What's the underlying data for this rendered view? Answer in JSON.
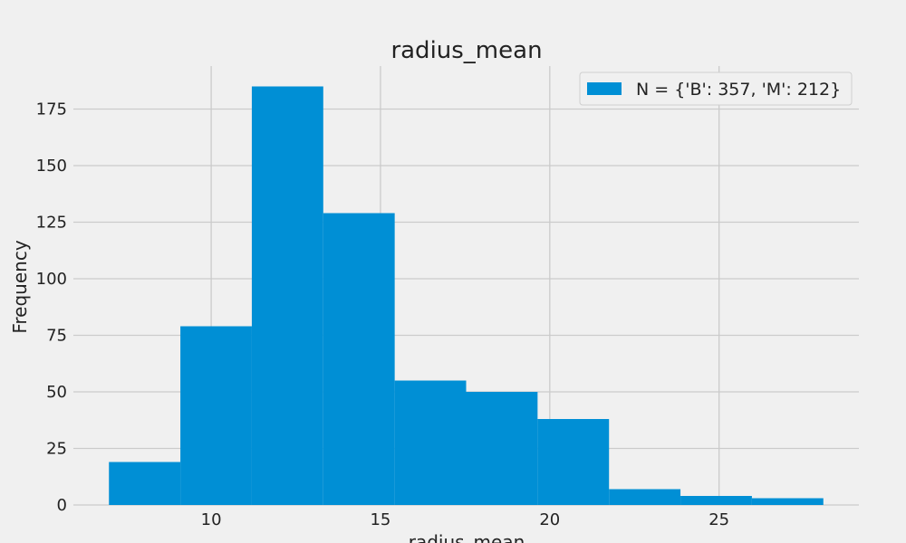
{
  "chart_data": {
    "type": "bar",
    "title": "radius_mean",
    "xlabel": "radius_mean",
    "ylabel": "Frequency",
    "bin_edges": [
      6.98,
      9.09,
      11.2,
      13.31,
      15.42,
      17.53,
      19.64,
      21.75,
      23.86,
      25.97,
      28.08
    ],
    "values": [
      19,
      79,
      185,
      129,
      55,
      50,
      38,
      7,
      4,
      3
    ],
    "series": [
      {
        "name": "N = {'B': 357, 'M': 212}",
        "color": "#008fd5"
      }
    ],
    "xlim": [
      5.93,
      29.13
    ],
    "ylim": [
      0,
      194
    ],
    "x_ticks": [
      10,
      15,
      20,
      25
    ],
    "y_ticks": [
      0,
      25,
      50,
      75,
      100,
      125,
      150,
      175
    ],
    "grid": true,
    "legend_position": "top-right"
  }
}
